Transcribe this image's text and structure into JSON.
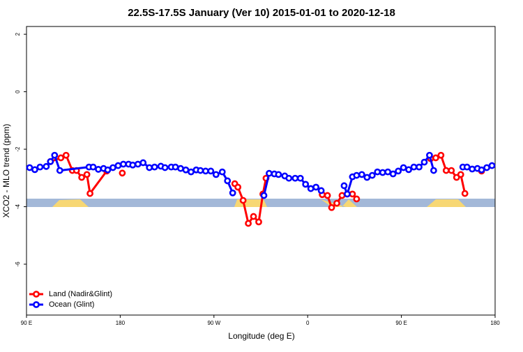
{
  "chart_data": {
    "type": "line",
    "title": "22.5S-17.5S January (Ver 10)   2015-01-01 to 2020-12-18",
    "x_label": "Longitude (deg E)",
    "y_label": "XCO2 - MLO trend (ppm)",
    "xlim": [
      90,
      540
    ],
    "xticks": [
      {
        "value": 90,
        "label": "90 E"
      },
      180,
      {
        "value": 270,
        "label": "90 W"
      },
      {
        "value": 360,
        "label": "0"
      },
      {
        "value": 450,
        "label": "90 E"
      },
      {
        "value": 540,
        "label": "180"
      }
    ],
    "ylim": [
      -7.77,
      2.27
    ],
    "yticks": [
      2,
      0,
      -2,
      -4,
      -6
    ],
    "legend": "bottom-left",
    "series": [
      {
        "name": "Land (Nadir&Glint)",
        "color": "#ff0000",
        "x": [
          113,
          123,
          128,
          134,
          138,
          143,
          148,
          151,
          167,
          170,
          182,
          250,
          290,
          293,
          298,
          303,
          308,
          313,
          317,
          320,
          350,
          374,
          379,
          383,
          388,
          393,
          398,
          403,
          407,
          450,
          478,
          483,
          488,
          493,
          498,
          503,
          507,
          511,
          520,
          527
        ],
        "values": [
          -2.43,
          -2.3,
          -2.21,
          -2.74,
          -2.74,
          -2.98,
          -2.88,
          -3.54,
          -2.76,
          null,
          -2.83,
          null,
          -3.2,
          -3.32,
          -3.78,
          -4.58,
          -4.34,
          -4.53,
          -3.56,
          -3.01,
          null,
          -3.58,
          -3.61,
          -4.03,
          -3.88,
          -3.61,
          -3.56,
          -3.56,
          -3.73,
          null,
          -2.33,
          -2.3,
          -2.21,
          -2.74,
          -2.74,
          -2.98,
          -2.88,
          -3.54,
          null,
          -2.76
        ]
      },
      {
        "name": "Ocean (Glint)",
        "color": "#0000ff",
        "x": [
          93,
          98,
          103,
          109,
          113,
          117,
          122,
          150,
          154,
          159,
          164,
          168,
          173,
          178,
          183,
          188,
          192,
          197,
          202,
          208,
          213,
          219,
          223,
          229,
          233,
          238,
          243,
          248,
          253,
          257,
          262,
          267,
          272,
          278,
          283,
          288,
          300,
          318,
          323,
          328,
          332,
          338,
          342,
          348,
          353,
          358,
          363,
          368,
          373,
          385,
          395,
          398,
          403,
          407,
          412,
          417,
          422,
          427,
          432,
          437,
          442,
          447,
          452,
          457,
          462,
          467,
          472,
          477,
          481,
          500,
          509,
          513,
          518,
          523,
          527,
          532,
          537
        ],
        "values": [
          -2.64,
          -2.71,
          -2.62,
          -2.6,
          -2.43,
          -2.21,
          -2.74,
          -2.62,
          -2.62,
          -2.7,
          -2.67,
          -2.72,
          -2.64,
          -2.57,
          -2.52,
          -2.52,
          -2.55,
          -2.52,
          -2.47,
          -2.64,
          -2.62,
          -2.59,
          -2.64,
          -2.62,
          -2.62,
          -2.67,
          -2.72,
          -2.79,
          -2.72,
          -2.74,
          -2.76,
          -2.76,
          -2.88,
          -2.79,
          -3.1,
          -3.52,
          null,
          -3.61,
          -2.84,
          -2.86,
          -2.88,
          -2.93,
          -3.01,
          -3.01,
          -3.01,
          -3.22,
          -3.37,
          -3.32,
          -3.44,
          null,
          -3.27,
          -3.56,
          -2.96,
          -2.91,
          -2.88,
          -2.98,
          -2.91,
          -2.79,
          -2.81,
          -2.79,
          -2.86,
          -2.76,
          -2.64,
          -2.71,
          -2.62,
          -2.62,
          -2.45,
          -2.21,
          -2.74,
          null,
          -2.62,
          -2.62,
          -2.69,
          -2.67,
          -2.72,
          -2.64,
          -2.57
        ]
      }
    ]
  }
}
